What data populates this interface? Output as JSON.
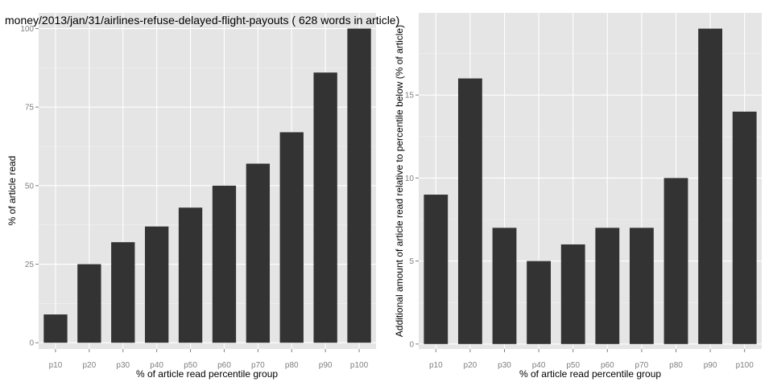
{
  "title": "money/2013/jan/31/airlines-refuse-delayed-flight-payouts ( 628 words in article)",
  "colors": {
    "bar": "#333333",
    "panel": "#e5e5e5",
    "grid": "#ffffff"
  },
  "chart_data": [
    {
      "type": "bar",
      "categories": [
        "p10",
        "p20",
        "p30",
        "p40",
        "p50",
        "p60",
        "p70",
        "p80",
        "p90",
        "p100"
      ],
      "values": [
        9,
        25,
        32,
        37,
        43,
        50,
        57,
        67,
        86,
        100
      ],
      "xlabel": "% of article read percentile group",
      "ylabel": "% of article read",
      "ylim": [
        -2,
        105
      ],
      "yticks": [
        0,
        25,
        50,
        75,
        100
      ],
      "grid": true
    },
    {
      "type": "bar",
      "categories": [
        "p10",
        "p20",
        "p30",
        "p40",
        "p50",
        "p60",
        "p70",
        "p80",
        "p90",
        "p100"
      ],
      "values": [
        9,
        16,
        7,
        5,
        6,
        7,
        7,
        10,
        19,
        14
      ],
      "xlabel": "% of article read percentile group",
      "ylabel": "Additional amount of article read relative to percentile below (% of article)",
      "ylim": [
        -0.3,
        19.95
      ],
      "yticks": [
        0,
        5,
        10,
        15
      ],
      "grid": true
    }
  ]
}
